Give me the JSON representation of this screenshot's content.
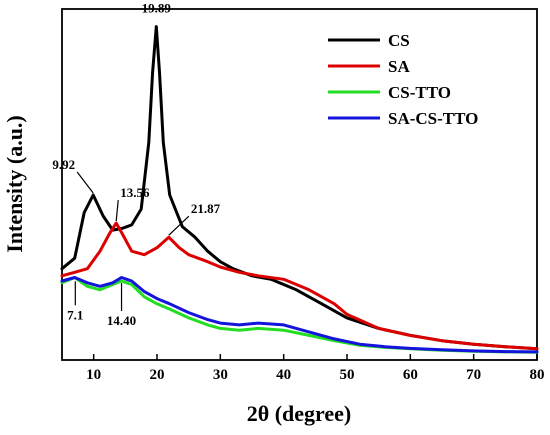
{
  "chart_data": {
    "type": "line",
    "title": "",
    "xlabel": "2θ (degree)",
    "ylabel": "Intensity (a.u.)",
    "xlim": [
      5,
      80
    ],
    "ylim": [
      0,
      100
    ],
    "xticks": [
      10,
      20,
      30,
      40,
      50,
      60,
      70,
      80
    ],
    "yticks_shown": false,
    "grid": false,
    "legend_position": "top-right",
    "series": [
      {
        "name": "CS",
        "color": "#000000",
        "points": [
          [
            5,
            26
          ],
          [
            7,
            29
          ],
          [
            8.5,
            42
          ],
          [
            9.92,
            47
          ],
          [
            11.5,
            41
          ],
          [
            13,
            37
          ],
          [
            14.5,
            37.5
          ],
          [
            16,
            38.5
          ],
          [
            17.5,
            43
          ],
          [
            18.7,
            62
          ],
          [
            19.3,
            82
          ],
          [
            19.89,
            95
          ],
          [
            20.4,
            82
          ],
          [
            21,
            62
          ],
          [
            22,
            47
          ],
          [
            24,
            38
          ],
          [
            26,
            35
          ],
          [
            28,
            31
          ],
          [
            30,
            28
          ],
          [
            32,
            26
          ],
          [
            35,
            24
          ],
          [
            38,
            23
          ],
          [
            42,
            20
          ],
          [
            46,
            16
          ],
          [
            50,
            12
          ],
          [
            55,
            9
          ],
          [
            60,
            7
          ],
          [
            65,
            5.5
          ],
          [
            70,
            4.5
          ],
          [
            75,
            3.8
          ],
          [
            80,
            3.2
          ]
        ]
      },
      {
        "name": "SA",
        "color": "#dd0000",
        "points": [
          [
            5,
            24
          ],
          [
            7,
            25
          ],
          [
            9,
            26
          ],
          [
            11,
            31
          ],
          [
            12.5,
            36
          ],
          [
            13.56,
            39
          ],
          [
            14.5,
            36
          ],
          [
            16,
            31
          ],
          [
            18,
            30
          ],
          [
            20,
            32
          ],
          [
            21.87,
            35
          ],
          [
            23.5,
            32
          ],
          [
            25,
            30
          ],
          [
            28,
            28
          ],
          [
            30,
            26.5
          ],
          [
            33,
            25
          ],
          [
            36,
            24
          ],
          [
            40,
            23
          ],
          [
            44,
            20
          ],
          [
            48,
            16
          ],
          [
            50,
            13
          ],
          [
            55,
            9
          ],
          [
            60,
            7
          ],
          [
            65,
            5.5
          ],
          [
            70,
            4.5
          ],
          [
            75,
            3.8
          ],
          [
            80,
            3.2
          ]
        ]
      },
      {
        "name": "CS-TTO",
        "color": "#22dd22",
        "points": [
          [
            5,
            22
          ],
          [
            7,
            23.5
          ],
          [
            9,
            21
          ],
          [
            11,
            20
          ],
          [
            13,
            21.5
          ],
          [
            14.4,
            22.5
          ],
          [
            16,
            21.5
          ],
          [
            18,
            18
          ],
          [
            20,
            16
          ],
          [
            22,
            14.5
          ],
          [
            25,
            12
          ],
          [
            28,
            10
          ],
          [
            30,
            9
          ],
          [
            33,
            8.5
          ],
          [
            36,
            9
          ],
          [
            40,
            8.5
          ],
          [
            44,
            7
          ],
          [
            48,
            5.5
          ],
          [
            52,
            4.2
          ],
          [
            56,
            3.6
          ],
          [
            60,
            3.2
          ],
          [
            65,
            2.8
          ],
          [
            70,
            2.5
          ],
          [
            75,
            2.3
          ],
          [
            80,
            2.2
          ]
        ]
      },
      {
        "name": "SA-CS-TTO",
        "color": "#1414dd",
        "points": [
          [
            5,
            22.5
          ],
          [
            7,
            23.5
          ],
          [
            9,
            22
          ],
          [
            11,
            21
          ],
          [
            13,
            22
          ],
          [
            14.4,
            23.5
          ],
          [
            16,
            22.5
          ],
          [
            18,
            19.5
          ],
          [
            20,
            17.5
          ],
          [
            22,
            16
          ],
          [
            25,
            13.5
          ],
          [
            28,
            11.5
          ],
          [
            30,
            10.5
          ],
          [
            33,
            10
          ],
          [
            36,
            10.5
          ],
          [
            40,
            10
          ],
          [
            44,
            8
          ],
          [
            48,
            6
          ],
          [
            52,
            4.5
          ],
          [
            56,
            3.8
          ],
          [
            60,
            3.3
          ],
          [
            65,
            2.9
          ],
          [
            70,
            2.6
          ],
          [
            75,
            2.4
          ],
          [
            80,
            2.3
          ]
        ]
      }
    ],
    "annotations": [
      {
        "text": "19.89",
        "x": 19.89,
        "y": 95
      },
      {
        "text": "9.92",
        "x": 9.92,
        "y": 47
      },
      {
        "text": "13.56",
        "x": 13.56,
        "y": 39
      },
      {
        "text": "21.87",
        "x": 21.87,
        "y": 35
      },
      {
        "text": "7.1",
        "x": 7.1,
        "y": 23
      },
      {
        "text": "14.40",
        "x": 14.4,
        "y": 22.5
      }
    ]
  }
}
